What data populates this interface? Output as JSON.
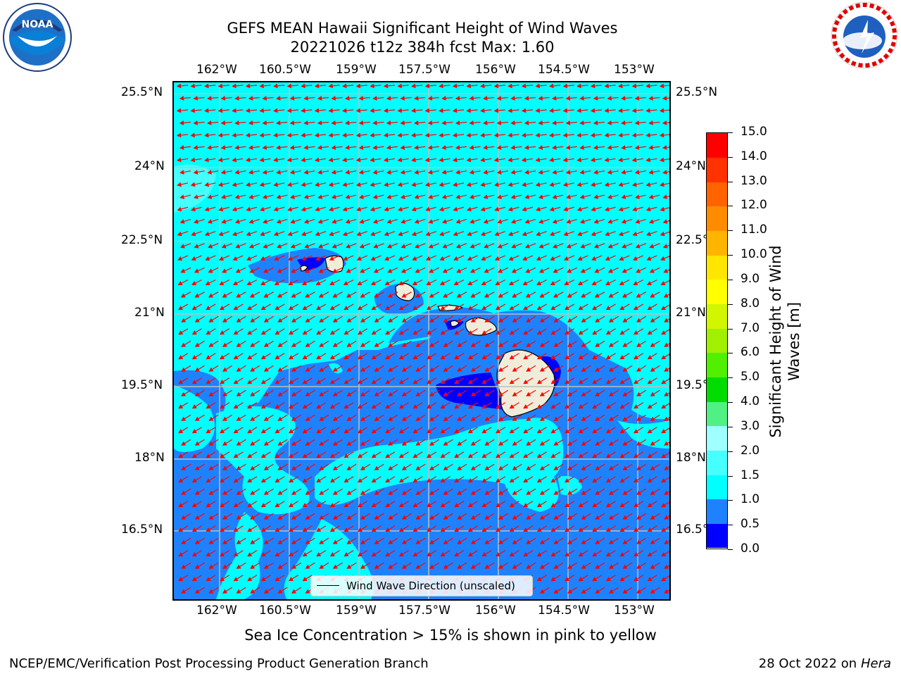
{
  "title_line1": "GEFS MEAN Hawaii Significant Height of Wind Waves",
  "title_line2": "20221026 t12z 384h fcst   Max: 1.60",
  "subnote": "Sea Ice Concentration > 15% is shown in pink to yellow",
  "footer_left": "NCEP/EMC/Verification Post Processing Product Generation Branch",
  "footer_right_date": "28 Oct 2022 on ",
  "footer_right_machine": "Hera",
  "logos": {
    "left": "noaa-logo",
    "right": "nws-logo"
  },
  "longitude_ticks": [
    "162°W",
    "160.5°W",
    "159°W",
    "157.5°W",
    "156°W",
    "154.5°W",
    "153°W"
  ],
  "latitude_ticks": [
    "25.5°N",
    "24°N",
    "22.5°N",
    "21°N",
    "19.5°N",
    "18°N",
    "16.5°N"
  ],
  "legend": {
    "label": "Wind Wave Direction (unscaled)",
    "line_color": "#000000"
  },
  "colorbar": {
    "title_line1": "Significant Height of Wind",
    "title_line2": "Waves [m]",
    "labels": [
      "0.0",
      "0.5",
      "1.0",
      "1.5",
      "2.0",
      "3.0",
      "4.0",
      "5.0",
      "6.0",
      "7.0",
      "8.0",
      "9.0",
      "10.0",
      "11.0",
      "12.0",
      "13.0",
      "14.0",
      "15.0"
    ],
    "colors": [
      "#0000ff",
      "#1e82ff",
      "#00ffff",
      "#46ffff",
      "#a0ffff",
      "#50f082",
      "#00dc00",
      "#50f000",
      "#a0f000",
      "#d2f500",
      "#ffff00",
      "#ffe600",
      "#ffb400",
      "#ff8c00",
      "#ff6400",
      "#ff3200",
      "#ff0000"
    ]
  },
  "colors": {
    "sea_light": "#00ffff",
    "sea_mid": "#1e82ff",
    "sea_low": "#0000ff",
    "land": "#efedd9",
    "arrow": "#ff0000",
    "grid": "#bdbdbd"
  }
}
